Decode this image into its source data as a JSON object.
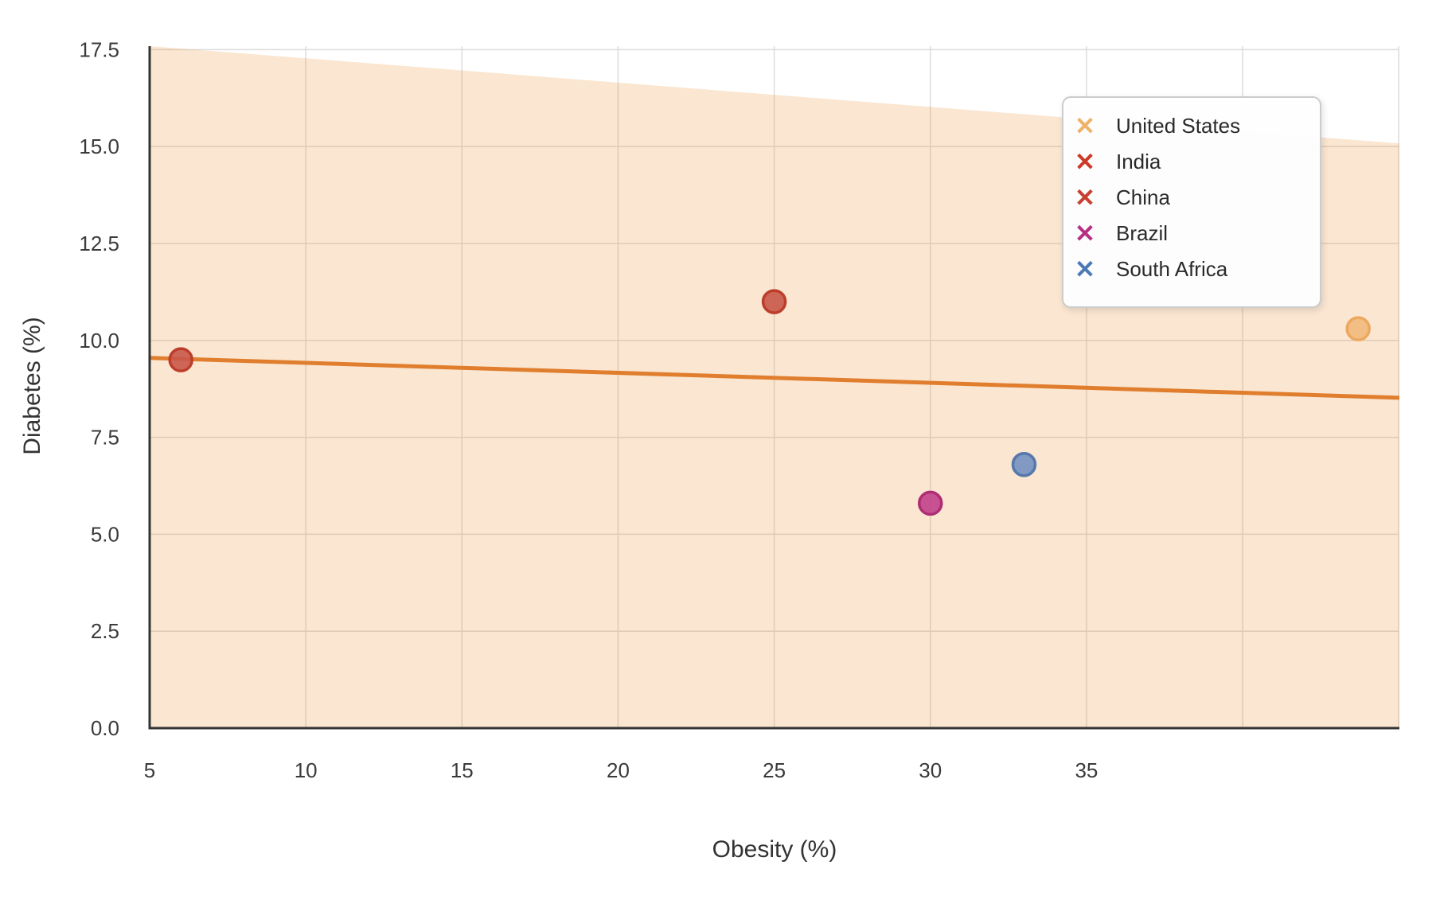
{
  "figure": {
    "background": "#ffffff",
    "grid_color": "#dcdcdc",
    "spine_color": "#333333",
    "tick_label_color": "#3b3b3b",
    "axis_label_color": "#333333"
  },
  "legend": {
    "position": "upper right",
    "border_color": "#cccccc",
    "background": "#ffffff",
    "text_color": "#2a2a2a",
    "marker_glyph": "✕",
    "items": [
      {
        "label": "United States",
        "color": "#efb269"
      },
      {
        "label": "India",
        "color": "#cc3a29"
      },
      {
        "label": "China",
        "color": "#c64130"
      },
      {
        "label": "Brazil",
        "color": "#b62f84"
      },
      {
        "label": "South Africa",
        "color": "#4a7ab5"
      }
    ]
  },
  "chart_data": {
    "type": "scatter",
    "title": "",
    "xlabel": "Obesity (%)",
    "ylabel": "Diabetes (%)",
    "xlim": [
      5,
      45.02
    ],
    "ylim": [
      0,
      17.59
    ],
    "grid": true,
    "x_tick_values": [
      5,
      10,
      15,
      20,
      25,
      30,
      35
    ],
    "x_tick_labels": [
      "5",
      "10",
      "15",
      "20",
      "25",
      "30",
      "35"
    ],
    "y_tick_values": [
      0,
      2.5,
      5,
      7.5,
      10,
      12.5,
      15,
      17.5
    ],
    "y_tick_labels": [
      "0.0",
      "2.5",
      "5.0",
      "7.5",
      "10.0",
      "12.5",
      "15.0",
      "17.5"
    ],
    "x_grid_values": [
      10,
      15,
      20,
      25,
      30,
      35,
      40,
      45
    ],
    "y_grid_values": [
      2.5,
      5,
      7.5,
      10,
      12.5,
      15,
      17.5
    ],
    "legend_position": "upper right",
    "points": [
      {
        "label": "United States",
        "x": 43.7,
        "y": 10.3,
        "fill": "#f2b97b",
        "edge": "#eca85e"
      },
      {
        "label": "India",
        "x": 6.0,
        "y": 9.5,
        "fill": "#c9584a",
        "edge": "#bd3d2b"
      },
      {
        "label": "China",
        "x": 25.0,
        "y": 11.0,
        "fill": "#c9584a",
        "edge": "#bd3d2b"
      },
      {
        "label": "Brazil",
        "x": 30.0,
        "y": 5.8,
        "fill": "#c24189",
        "edge": "#ae2d75"
      },
      {
        "label": "South Africa",
        "x": 33.0,
        "y": 6.8,
        "fill": "#7390c1",
        "edge": "#5578ad"
      }
    ],
    "marker_radius": 14,
    "regression_line": {
      "color": "#e07e2e",
      "width": 5,
      "points": [
        [
          5,
          9.55
        ],
        [
          45.02,
          8.52
        ]
      ]
    },
    "confidence_band": {
      "fill": "rgba(233,140,45,0.22)",
      "top_edge": [
        [
          5,
          17.59
        ],
        [
          45.02,
          15.08
        ]
      ],
      "bottom": 0
    }
  }
}
